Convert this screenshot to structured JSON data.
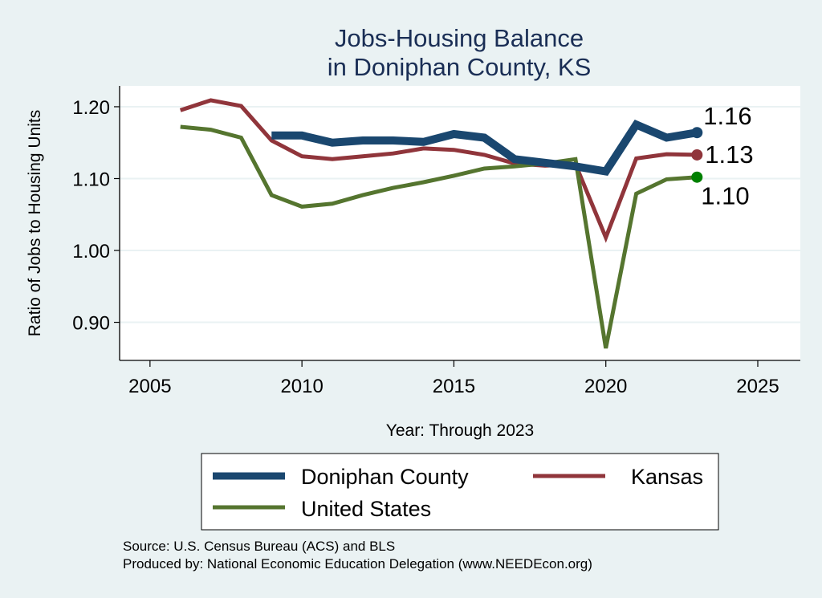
{
  "chart_data": {
    "type": "line",
    "title": [
      "Jobs-Housing Balance",
      "in Doniphan County, KS"
    ],
    "xlabel": "Year: Through 2023",
    "ylabel": "Ratio of Jobs to Housing Units",
    "xlim": [
      2004,
      2026.4
    ],
    "ylim": [
      0.847,
      1.229
    ],
    "xticks": [
      2005,
      2010,
      2015,
      2020,
      2025
    ],
    "xtick_labels": [
      "2005",
      "2010",
      "2015",
      "2020",
      "2025"
    ],
    "yticks": [
      0.9,
      1.0,
      1.1,
      1.2
    ],
    "ytick_labels": [
      "0.90",
      "1.00",
      "1.10",
      "1.20"
    ],
    "grid": true,
    "legend_position": "bottom",
    "series": [
      {
        "name": "Doniphan County",
        "color": "#1a476f",
        "x": [
          2009,
          2010,
          2011,
          2012,
          2013,
          2014,
          2015,
          2016,
          2017,
          2018,
          2019,
          2020,
          2021,
          2022,
          2023
        ],
        "values": [
          1.16,
          1.16,
          1.15,
          1.153,
          1.153,
          1.151,
          1.162,
          1.157,
          1.127,
          1.122,
          1.117,
          1.11,
          1.175,
          1.157,
          1.164
        ],
        "end_label": "1.16",
        "end_marker_color": "#1a476f"
      },
      {
        "name": "Kansas",
        "color": "#90353b",
        "x": [
          2006,
          2007,
          2008,
          2009,
          2010,
          2011,
          2012,
          2013,
          2014,
          2015,
          2016,
          2017,
          2018,
          2019,
          2020,
          2021,
          2022,
          2023
        ],
        "values": [
          1.195,
          1.209,
          1.201,
          1.153,
          1.131,
          1.127,
          1.131,
          1.135,
          1.142,
          1.14,
          1.133,
          1.121,
          1.118,
          1.12,
          1.018,
          1.128,
          1.134,
          1.133
        ],
        "end_label": "1.13",
        "end_marker_color": "#90353b"
      },
      {
        "name": "United States",
        "color": "#55752f",
        "x": [
          2006,
          2007,
          2008,
          2009,
          2010,
          2011,
          2012,
          2013,
          2014,
          2015,
          2016,
          2017,
          2018,
          2019,
          2020,
          2021,
          2022,
          2023
        ],
        "values": [
          1.172,
          1.168,
          1.157,
          1.077,
          1.061,
          1.065,
          1.077,
          1.087,
          1.095,
          1.104,
          1.114,
          1.117,
          1.121,
          1.127,
          0.864,
          1.079,
          1.099,
          1.102
        ],
        "end_label": "1.10",
        "end_marker_color": "#008000"
      }
    ]
  },
  "footer": {
    "source": "Source: U.S. Census Bureau (ACS) and BLS",
    "produced_by": "Produced by: National Economic Education Delegation (www.NEEDEcon.org)"
  }
}
